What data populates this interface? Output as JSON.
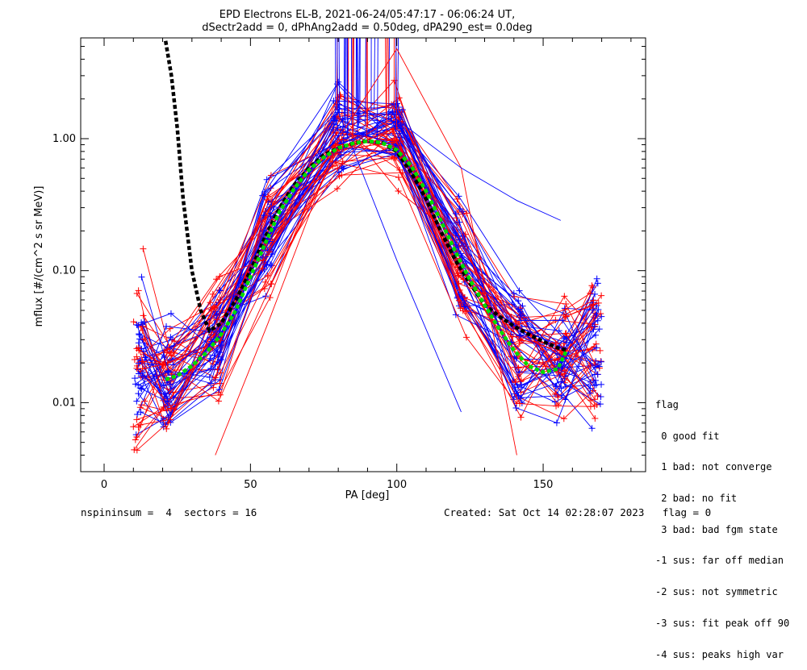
{
  "chart_data": {
    "type": "line",
    "title": "EPD Electrons EL-B, 2021-06-24/05:47:17 - 06:06:24 UT,",
    "subtitle": "dSectr2add = 0, dPhAng2add = 0.50deg, dPA290_est=   0.0deg",
    "xlabel": "PA [deg]",
    "ylabel": "mflux [#/(cm^2 s sr MeV)]",
    "xlim": [
      -8,
      185
    ],
    "ylim": [
      0.003,
      5.8
    ],
    "yscale": "log",
    "x_ticks": [
      0,
      50,
      100,
      150
    ],
    "y_ticks": [
      0.01,
      0.1,
      1.0
    ],
    "y_tick_labels": [
      "0.01",
      "0.10",
      "1.00"
    ],
    "series": [
      {
        "color": "#000000",
        "style": "dashed-thick",
        "x": [
          21,
          23,
          25,
          27,
          30,
          33,
          36,
          40,
          45,
          50,
          55,
          60,
          65,
          70,
          75,
          80,
          85,
          90,
          95,
          100,
          105,
          110,
          115,
          120,
          125,
          130,
          135,
          140,
          145,
          150,
          155,
          158
        ],
        "y": [
          5.5,
          3.0,
          1.2,
          0.35,
          0.1,
          0.05,
          0.035,
          0.04,
          0.06,
          0.1,
          0.18,
          0.3,
          0.45,
          0.6,
          0.75,
          0.85,
          0.92,
          0.96,
          0.93,
          0.8,
          0.55,
          0.35,
          0.2,
          0.12,
          0.08,
          0.055,
          0.045,
          0.038,
          0.033,
          0.029,
          0.026,
          0.025
        ]
      },
      {
        "color": "#00dd00",
        "style": "dashed-thick",
        "x": [
          21,
          25,
          30,
          35,
          40,
          45,
          50,
          55,
          60,
          65,
          70,
          75,
          80,
          85,
          90,
          95,
          100,
          105,
          110,
          115,
          120,
          125,
          130,
          135,
          140,
          145,
          150,
          155,
          158
        ],
        "y": [
          0.015,
          0.016,
          0.019,
          0.024,
          0.033,
          0.05,
          0.09,
          0.16,
          0.28,
          0.42,
          0.58,
          0.72,
          0.85,
          0.92,
          0.96,
          0.93,
          0.82,
          0.62,
          0.4,
          0.24,
          0.14,
          0.085,
          0.055,
          0.036,
          0.025,
          0.019,
          0.017,
          0.018,
          0.025
        ]
      }
    ],
    "sample_traces": {
      "colors": [
        "#ff0000",
        "#0000ff"
      ],
      "count": 70,
      "note": ""
    }
  },
  "legend": {
    "lines": [
      "flag",
      " 0 good fit",
      " 1 bad: not converge",
      " 2 bad: no fit",
      " 3 bad: bad fgm state",
      "-1 sus: far off median",
      "-2 sus: not symmetric",
      "-3 sus: fit peak off 90",
      "-4 sus: peaks high var"
    ]
  },
  "footer": {
    "left": "nspininsum =  4  sectors = 16",
    "right": "Created: Sat Oct 14 02:28:07 2023   flag = 0"
  }
}
